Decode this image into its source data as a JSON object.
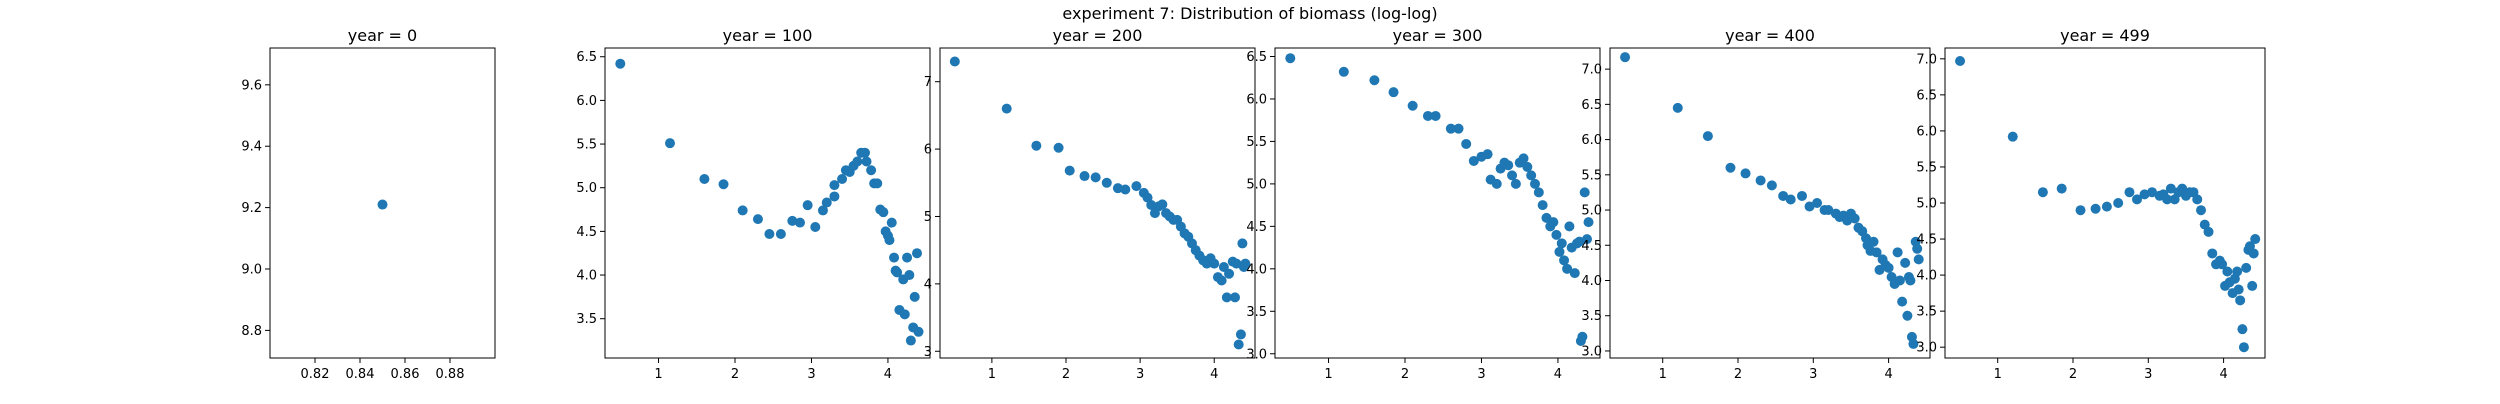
{
  "figure": {
    "title": "experiment 7: Distribution of biomass (log-log)"
  },
  "colors": {
    "marker": "#1f77b4",
    "axis": "#000000",
    "background": "#ffffff"
  },
  "chart_data": [
    {
      "type": "scatter",
      "title": "year = 0",
      "xlim": [
        0.8,
        0.9
      ],
      "ylim": [
        8.71,
        9.72
      ],
      "xticks": [
        0.82,
        0.84,
        0.86,
        0.88
      ],
      "yticks": [
        8.8,
        9.0,
        9.2,
        9.4,
        9.6
      ],
      "xticklabels": [
        "0.82",
        "0.84",
        "0.86",
        "0.88"
      ],
      "yticklabels": [
        "8.8",
        "9.0",
        "9.2",
        "9.4",
        "9.6"
      ],
      "points": [
        [
          0.85,
          9.21
        ]
      ]
    },
    {
      "type": "scatter",
      "title": "year = 100",
      "xlim": [
        0.3,
        4.55
      ],
      "ylim": [
        3.05,
        6.6
      ],
      "xticks": [
        1,
        2,
        3,
        4
      ],
      "yticks": [
        3.5,
        4.0,
        4.5,
        5.0,
        5.5,
        6.0,
        6.5
      ],
      "xticklabels": [
        "1",
        "2",
        "3",
        "4"
      ],
      "yticklabels": [
        "3.5",
        "4.0",
        "4.5",
        "5.0",
        "5.5",
        "6.0",
        "6.5"
      ],
      "points": [
        [
          0.5,
          6.42
        ],
        [
          1.15,
          5.51
        ],
        [
          1.6,
          5.1
        ],
        [
          1.85,
          5.04
        ],
        [
          2.1,
          4.74
        ],
        [
          2.3,
          4.64
        ],
        [
          2.45,
          4.47
        ],
        [
          2.6,
          4.47
        ],
        [
          2.75,
          4.62
        ],
        [
          2.85,
          4.6
        ],
        [
          2.95,
          4.8
        ],
        [
          3.05,
          4.55
        ],
        [
          3.15,
          4.74
        ],
        [
          3.2,
          4.83
        ],
        [
          3.3,
          4.9
        ],
        [
          3.3,
          5.03
        ],
        [
          3.4,
          5.1
        ],
        [
          3.45,
          5.2
        ],
        [
          3.5,
          5.18
        ],
        [
          3.55,
          5.25
        ],
        [
          3.6,
          5.3
        ],
        [
          3.65,
          5.4
        ],
        [
          3.7,
          5.4
        ],
        [
          3.72,
          5.3
        ],
        [
          3.78,
          5.2
        ],
        [
          3.82,
          5.05
        ],
        [
          3.86,
          5.05
        ],
        [
          3.9,
          4.75
        ],
        [
          3.94,
          4.72
        ],
        [
          3.97,
          4.5
        ],
        [
          4.0,
          4.45
        ],
        [
          4.02,
          4.4
        ],
        [
          4.05,
          4.6
        ],
        [
          4.08,
          4.2
        ],
        [
          4.1,
          4.05
        ],
        [
          4.12,
          4.03
        ],
        [
          4.15,
          3.6
        ],
        [
          4.2,
          3.95
        ],
        [
          4.22,
          3.55
        ],
        [
          4.25,
          4.2
        ],
        [
          4.28,
          4.0
        ],
        [
          4.3,
          3.25
        ],
        [
          4.33,
          3.4
        ],
        [
          4.35,
          3.75
        ],
        [
          4.38,
          4.25
        ],
        [
          4.4,
          3.35
        ]
      ]
    },
    {
      "type": "scatter",
      "title": "year = 200",
      "xlim": [
        0.3,
        4.55
      ],
      "ylim": [
        2.9,
        7.5
      ],
      "xticks": [
        1,
        2,
        3,
        4
      ],
      "yticks": [
        3,
        4,
        5,
        6,
        7
      ],
      "xticklabels": [
        "1",
        "2",
        "3",
        "4"
      ],
      "yticklabels": [
        "3",
        "4",
        "5",
        "6",
        "7"
      ],
      "points": [
        [
          0.5,
          7.3
        ],
        [
          1.2,
          6.6
        ],
        [
          1.6,
          6.05
        ],
        [
          1.9,
          6.02
        ],
        [
          2.05,
          5.68
        ],
        [
          2.25,
          5.6
        ],
        [
          2.4,
          5.58
        ],
        [
          2.55,
          5.5
        ],
        [
          2.7,
          5.42
        ],
        [
          2.8,
          5.4
        ],
        [
          2.95,
          5.45
        ],
        [
          3.05,
          5.35
        ],
        [
          3.1,
          5.28
        ],
        [
          3.15,
          5.17
        ],
        [
          3.2,
          5.05
        ],
        [
          3.25,
          5.15
        ],
        [
          3.3,
          5.18
        ],
        [
          3.35,
          5.05
        ],
        [
          3.4,
          5.0
        ],
        [
          3.45,
          4.95
        ],
        [
          3.5,
          4.95
        ],
        [
          3.55,
          4.85
        ],
        [
          3.6,
          4.75
        ],
        [
          3.65,
          4.7
        ],
        [
          3.7,
          4.6
        ],
        [
          3.75,
          4.5
        ],
        [
          3.8,
          4.42
        ],
        [
          3.85,
          4.35
        ],
        [
          3.9,
          4.3
        ],
        [
          3.95,
          4.38
        ],
        [
          4.0,
          4.3
        ],
        [
          4.05,
          4.1
        ],
        [
          4.1,
          4.05
        ],
        [
          4.13,
          4.25
        ],
        [
          4.17,
          3.8
        ],
        [
          4.2,
          4.15
        ],
        [
          4.25,
          4.33
        ],
        [
          4.28,
          3.8
        ],
        [
          4.3,
          4.3
        ],
        [
          4.33,
          3.1
        ],
        [
          4.36,
          3.25
        ],
        [
          4.38,
          4.6
        ],
        [
          4.4,
          4.25
        ],
        [
          4.42,
          4.3
        ]
      ]
    },
    {
      "type": "scatter",
      "title": "year = 300",
      "xlim": [
        0.3,
        4.55
      ],
      "ylim": [
        2.95,
        6.6
      ],
      "xticks": [
        1,
        2,
        3,
        4
      ],
      "yticks": [
        3.0,
        3.5,
        4.0,
        4.5,
        5.0,
        5.5,
        6.0,
        6.5
      ],
      "xticklabels": [
        "1",
        "2",
        "3",
        "4"
      ],
      "yticklabels": [
        "3.0",
        "3.5",
        "4.0",
        "4.5",
        "5.0",
        "5.5",
        "6.0",
        "6.5"
      ],
      "points": [
        [
          0.5,
          6.48
        ],
        [
          1.2,
          6.32
        ],
        [
          1.6,
          6.22
        ],
        [
          1.85,
          6.08
        ],
        [
          2.1,
          5.92
        ],
        [
          2.3,
          5.8
        ],
        [
          2.4,
          5.8
        ],
        [
          2.6,
          5.65
        ],
        [
          2.7,
          5.65
        ],
        [
          2.8,
          5.47
        ],
        [
          2.9,
          5.27
        ],
        [
          3.0,
          5.32
        ],
        [
          3.08,
          5.35
        ],
        [
          3.12,
          5.05
        ],
        [
          3.2,
          5.0
        ],
        [
          3.25,
          5.18
        ],
        [
          3.3,
          5.25
        ],
        [
          3.35,
          5.22
        ],
        [
          3.4,
          5.1
        ],
        [
          3.45,
          5.0
        ],
        [
          3.5,
          5.25
        ],
        [
          3.55,
          5.3
        ],
        [
          3.6,
          5.2
        ],
        [
          3.65,
          5.1
        ],
        [
          3.7,
          5.0
        ],
        [
          3.75,
          4.9
        ],
        [
          3.8,
          4.75
        ],
        [
          3.85,
          4.6
        ],
        [
          3.9,
          4.5
        ],
        [
          3.94,
          4.55
        ],
        [
          3.98,
          4.4
        ],
        [
          4.02,
          4.2
        ],
        [
          4.05,
          4.3
        ],
        [
          4.08,
          4.1
        ],
        [
          4.12,
          4.0
        ],
        [
          4.15,
          4.5
        ],
        [
          4.18,
          4.25
        ],
        [
          4.22,
          3.95
        ],
        [
          4.25,
          4.3
        ],
        [
          4.28,
          4.32
        ],
        [
          4.3,
          3.15
        ],
        [
          4.32,
          3.2
        ],
        [
          4.35,
          4.9
        ],
        [
          4.38,
          4.35
        ],
        [
          4.4,
          4.55
        ]
      ]
    },
    {
      "type": "scatter",
      "title": "year = 400",
      "xlim": [
        0.3,
        4.55
      ],
      "ylim": [
        2.9,
        7.3
      ],
      "xticks": [
        1,
        2,
        3,
        4
      ],
      "yticks": [
        3.0,
        3.5,
        4.0,
        4.5,
        5.0,
        5.5,
        6.0,
        6.5,
        7.0
      ],
      "xticklabels": [
        "1",
        "2",
        "3",
        "4"
      ],
      "yticklabels": [
        "3.0",
        "3.5",
        "4.0",
        "4.5",
        "5.0",
        "5.5",
        "6.0",
        "6.5",
        "7.0"
      ],
      "points": [
        [
          0.5,
          7.17
        ],
        [
          1.2,
          6.45
        ],
        [
          1.6,
          6.05
        ],
        [
          1.9,
          5.6
        ],
        [
          2.1,
          5.52
        ],
        [
          2.3,
          5.42
        ],
        [
          2.45,
          5.35
        ],
        [
          2.6,
          5.2
        ],
        [
          2.7,
          5.15
        ],
        [
          2.85,
          5.2
        ],
        [
          2.95,
          5.05
        ],
        [
          3.05,
          5.1
        ],
        [
          3.15,
          5.0
        ],
        [
          3.2,
          5.0
        ],
        [
          3.3,
          4.95
        ],
        [
          3.35,
          4.9
        ],
        [
          3.4,
          4.92
        ],
        [
          3.45,
          4.85
        ],
        [
          3.5,
          4.95
        ],
        [
          3.55,
          4.88
        ],
        [
          3.6,
          4.75
        ],
        [
          3.65,
          4.7
        ],
        [
          3.7,
          4.6
        ],
        [
          3.72,
          4.5
        ],
        [
          3.76,
          4.42
        ],
        [
          3.8,
          4.55
        ],
        [
          3.84,
          4.4
        ],
        [
          3.88,
          4.15
        ],
        [
          3.92,
          4.3
        ],
        [
          3.96,
          4.22
        ],
        [
          4.0,
          4.18
        ],
        [
          4.04,
          4.05
        ],
        [
          4.08,
          3.95
        ],
        [
          4.12,
          4.4
        ],
        [
          4.15,
          4.0
        ],
        [
          4.18,
          3.7
        ],
        [
          4.22,
          4.25
        ],
        [
          4.25,
          3.5
        ],
        [
          4.27,
          4.05
        ],
        [
          4.29,
          4.0
        ],
        [
          4.31,
          3.2
        ],
        [
          4.33,
          3.1
        ],
        [
          4.36,
          4.55
        ],
        [
          4.38,
          4.45
        ],
        [
          4.4,
          4.3
        ]
      ]
    },
    {
      "type": "scatter",
      "title": "year = 499",
      "xlim": [
        0.3,
        4.55
      ],
      "ylim": [
        2.85,
        7.15
      ],
      "xticks": [
        1,
        2,
        3,
        4
      ],
      "yticks": [
        3.0,
        3.5,
        4.0,
        4.5,
        5.0,
        5.5,
        6.0,
        6.5,
        7.0
      ],
      "xticklabels": [
        "1",
        "2",
        "3",
        "4"
      ],
      "yticklabels": [
        "3.0",
        "3.5",
        "4.0",
        "4.5",
        "5.0",
        "5.5",
        "6.0",
        "6.5",
        "7.0"
      ],
      "points": [
        [
          0.5,
          6.97
        ],
        [
          1.2,
          5.92
        ],
        [
          1.6,
          5.15
        ],
        [
          1.85,
          5.2
        ],
        [
          2.1,
          4.9
        ],
        [
          2.3,
          4.92
        ],
        [
          2.45,
          4.95
        ],
        [
          2.6,
          5.0
        ],
        [
          2.75,
          5.15
        ],
        [
          2.85,
          5.05
        ],
        [
          2.95,
          5.12
        ],
        [
          3.05,
          5.15
        ],
        [
          3.15,
          5.1
        ],
        [
          3.2,
          5.12
        ],
        [
          3.25,
          5.05
        ],
        [
          3.3,
          5.2
        ],
        [
          3.35,
          5.05
        ],
        [
          3.4,
          5.15
        ],
        [
          3.45,
          5.2
        ],
        [
          3.5,
          5.1
        ],
        [
          3.55,
          5.15
        ],
        [
          3.6,
          5.15
        ],
        [
          3.65,
          5.05
        ],
        [
          3.7,
          4.9
        ],
        [
          3.75,
          4.7
        ],
        [
          3.8,
          4.6
        ],
        [
          3.85,
          4.3
        ],
        [
          3.9,
          4.15
        ],
        [
          3.95,
          4.2
        ],
        [
          3.98,
          4.15
        ],
        [
          4.02,
          3.85
        ],
        [
          4.05,
          4.05
        ],
        [
          4.08,
          3.9
        ],
        [
          4.12,
          3.75
        ],
        [
          4.15,
          3.95
        ],
        [
          4.18,
          4.05
        ],
        [
          4.2,
          3.8
        ],
        [
          4.22,
          3.65
        ],
        [
          4.25,
          3.25
        ],
        [
          4.27,
          3.0
        ],
        [
          4.3,
          4.1
        ],
        [
          4.33,
          4.35
        ],
        [
          4.35,
          4.4
        ],
        [
          4.38,
          3.85
        ],
        [
          4.4,
          4.3
        ],
        [
          4.42,
          4.5
        ]
      ]
    }
  ]
}
